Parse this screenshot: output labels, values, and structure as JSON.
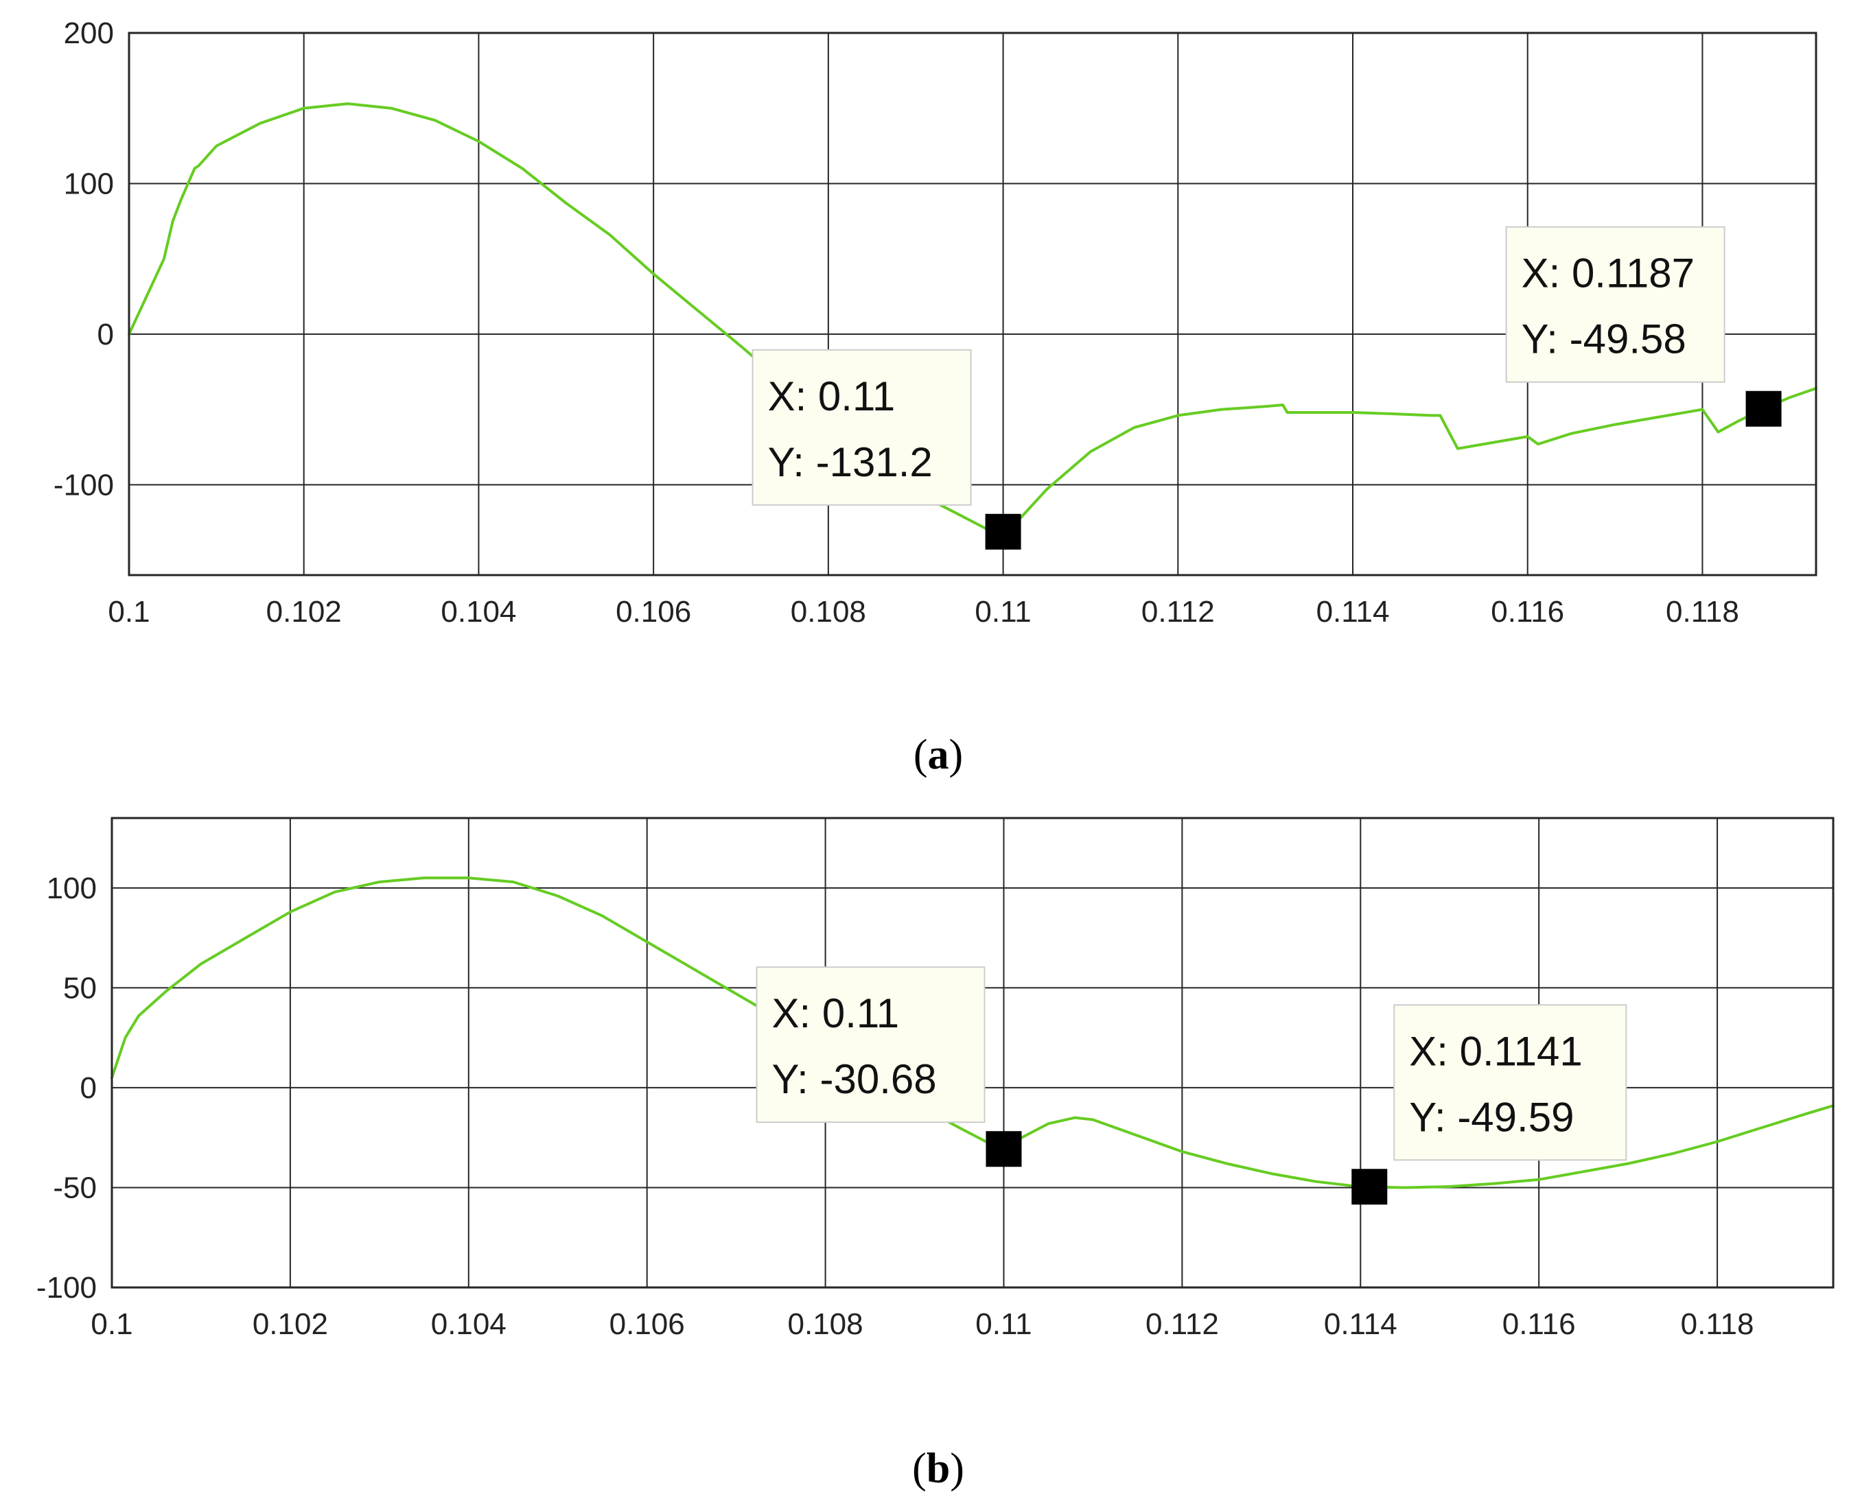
{
  "panels": [
    {
      "caption": "a",
      "x_ticks": [
        "0.1",
        "0.102",
        "0.104",
        "0.106",
        "0.108",
        "0.11",
        "0.112",
        "0.114",
        "0.116",
        "0.118"
      ],
      "y_ticks": [
        "200",
        "100",
        "0",
        "-100"
      ],
      "datatips": [
        {
          "x_label": "X: 0.11",
          "y_label": "Y: -131.2"
        },
        {
          "x_label": "X: 0.1187",
          "y_label": "Y: -49.58"
        }
      ]
    },
    {
      "caption": "b",
      "x_ticks": [
        "0.1",
        "0.102",
        "0.104",
        "0.106",
        "0.108",
        "0.11",
        "0.112",
        "0.114",
        "0.116",
        "0.118"
      ],
      "y_ticks": [
        "100",
        "50",
        "0",
        "-50",
        "-100"
      ],
      "datatips": [
        {
          "x_label": "X: 0.11",
          "y_label": "Y: -30.68"
        },
        {
          "x_label": "X: 0.1141",
          "y_label": "Y: -49.59"
        }
      ]
    }
  ],
  "colors": {
    "line": "#66cc22",
    "grid": "#262626",
    "marker": "#000000",
    "tip_bg": "#fdfdf0",
    "tip_border": "#cccccc"
  },
  "chart_data": [
    {
      "type": "line",
      "xlim": [
        0.1,
        0.1193
      ],
      "ylim": [
        -160,
        200
      ],
      "grid": true,
      "xticks": [
        0.1,
        0.102,
        0.104,
        0.106,
        0.108,
        0.11,
        0.112,
        0.114,
        0.116,
        0.118
      ],
      "yticks": [
        200,
        100,
        0,
        -100
      ],
      "series": [
        {
          "x": [
            0.1,
            0.1002,
            0.1004,
            0.1005,
            0.1006,
            0.10075,
            0.1008,
            0.101,
            0.1015,
            0.102,
            0.1025,
            0.103,
            0.1035,
            0.104,
            0.1045,
            0.105,
            0.1055,
            0.106,
            0.1065,
            0.107,
            0.1075,
            0.108,
            0.1085,
            0.109,
            0.1095,
            0.1098,
            0.11,
            0.1102,
            0.1105,
            0.111,
            0.1115,
            0.112,
            0.1125,
            0.113,
            0.1132,
            0.11325,
            0.114,
            0.1145,
            0.1149,
            0.115,
            0.1152,
            0.1155,
            0.1158,
            0.116,
            0.11612,
            0.1165,
            0.117,
            0.1175,
            0.1179,
            0.118,
            0.11818,
            0.1184,
            0.1187,
            0.119,
            0.1193
          ],
          "y": [
            0,
            25,
            50,
            75,
            90,
            110,
            112,
            125,
            140,
            150,
            153,
            150,
            142,
            128,
            110,
            87,
            66,
            40,
            16,
            -8,
            -33,
            -60,
            -85,
            -105,
            -120,
            -129,
            -131.2,
            -122,
            -103,
            -78,
            -62,
            -54,
            -50,
            -48,
            -47,
            -52,
            -52,
            -53,
            -54,
            -54,
            -76,
            -73,
            -70,
            -68,
            -73,
            -66,
            -60,
            -55,
            -51,
            -50,
            -65,
            -58,
            -49.58,
            -42,
            -36
          ]
        }
      ],
      "annotations": [
        {
          "x": 0.11,
          "y": -131.2
        },
        {
          "x": 0.1187,
          "y": -49.58
        }
      ]
    },
    {
      "type": "line",
      "xlim": [
        0.1,
        0.1193
      ],
      "ylim": [
        -100,
        135
      ],
      "grid": true,
      "xticks": [
        0.1,
        0.102,
        0.104,
        0.106,
        0.108,
        0.11,
        0.112,
        0.114,
        0.116,
        0.118
      ],
      "yticks": [
        100,
        50,
        0,
        -50,
        -100
      ],
      "series": [
        {
          "x": [
            0.1,
            0.10015,
            0.1003,
            0.1006,
            0.101,
            0.1015,
            0.102,
            0.1025,
            0.103,
            0.1035,
            0.104,
            0.1045,
            0.105,
            0.1055,
            0.106,
            0.1065,
            0.107,
            0.1075,
            0.108,
            0.1085,
            0.109,
            0.1095,
            0.1098,
            0.11,
            0.1102,
            0.1105,
            0.1108,
            0.111,
            0.1115,
            0.112,
            0.1125,
            0.113,
            0.1135,
            0.114,
            0.1145,
            0.115,
            0.1155,
            0.116,
            0.1165,
            0.117,
            0.1175,
            0.118,
            0.1185,
            0.119,
            0.1193
          ],
          "y": [
            5,
            25,
            36,
            48,
            62,
            75,
            88,
            98,
            103,
            105,
            105,
            103,
            96,
            86,
            73,
            60,
            47,
            34,
            20,
            5,
            -8,
            -20,
            -27,
            -30.68,
            -25,
            -18,
            -15,
            -16,
            -24,
            -32,
            -38,
            -43,
            -47,
            -49.59,
            -50,
            -49.5,
            -48,
            -46,
            -42,
            -38,
            -33,
            -27,
            -20,
            -13,
            -9
          ]
        }
      ],
      "annotations": [
        {
          "x": 0.11,
          "y": -30.68
        },
        {
          "x": 0.1141,
          "y": -49.59
        }
      ]
    }
  ]
}
